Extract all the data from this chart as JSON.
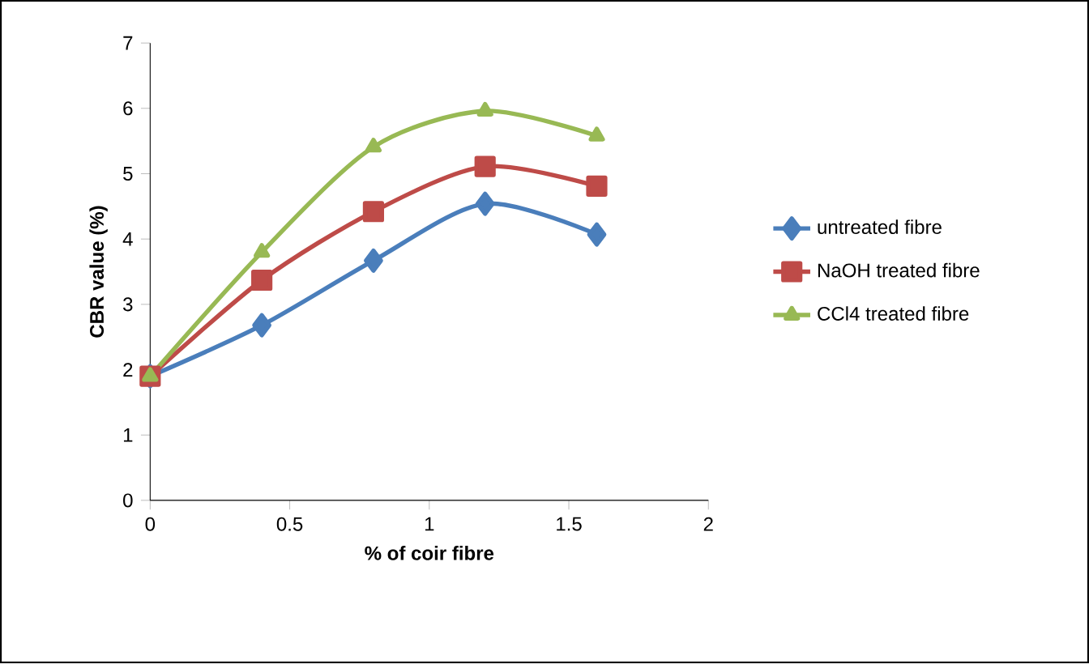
{
  "chart_data": {
    "type": "line",
    "xlabel": "% of coir fibre",
    "ylabel": "CBR value (%)",
    "x": [
      0,
      0.4,
      0.8,
      1.2,
      1.6
    ],
    "series": [
      {
        "name": "untreated fibre",
        "color": "#4a7ebb",
        "marker": "diamond",
        "values": [
          1.9,
          2.68,
          3.67,
          4.54,
          4.07
        ]
      },
      {
        "name": "NaOH treated fibre",
        "color": "#be4b48",
        "marker": "square",
        "values": [
          1.9,
          3.37,
          4.42,
          5.11,
          4.81
        ]
      },
      {
        "name": "CCl4 treated fibre",
        "color": "#98b954",
        "marker": "triangle",
        "values": [
          1.9,
          3.8,
          5.41,
          5.96,
          5.58
        ]
      }
    ],
    "xlim": [
      0,
      2
    ],
    "xticks": [
      0,
      0.5,
      1,
      1.5,
      2
    ],
    "ylim": [
      0,
      7
    ],
    "yticks": [
      0,
      1,
      2,
      3,
      4,
      5,
      6,
      7
    ],
    "grid": false,
    "legend": "right",
    "line_style": "solid"
  }
}
